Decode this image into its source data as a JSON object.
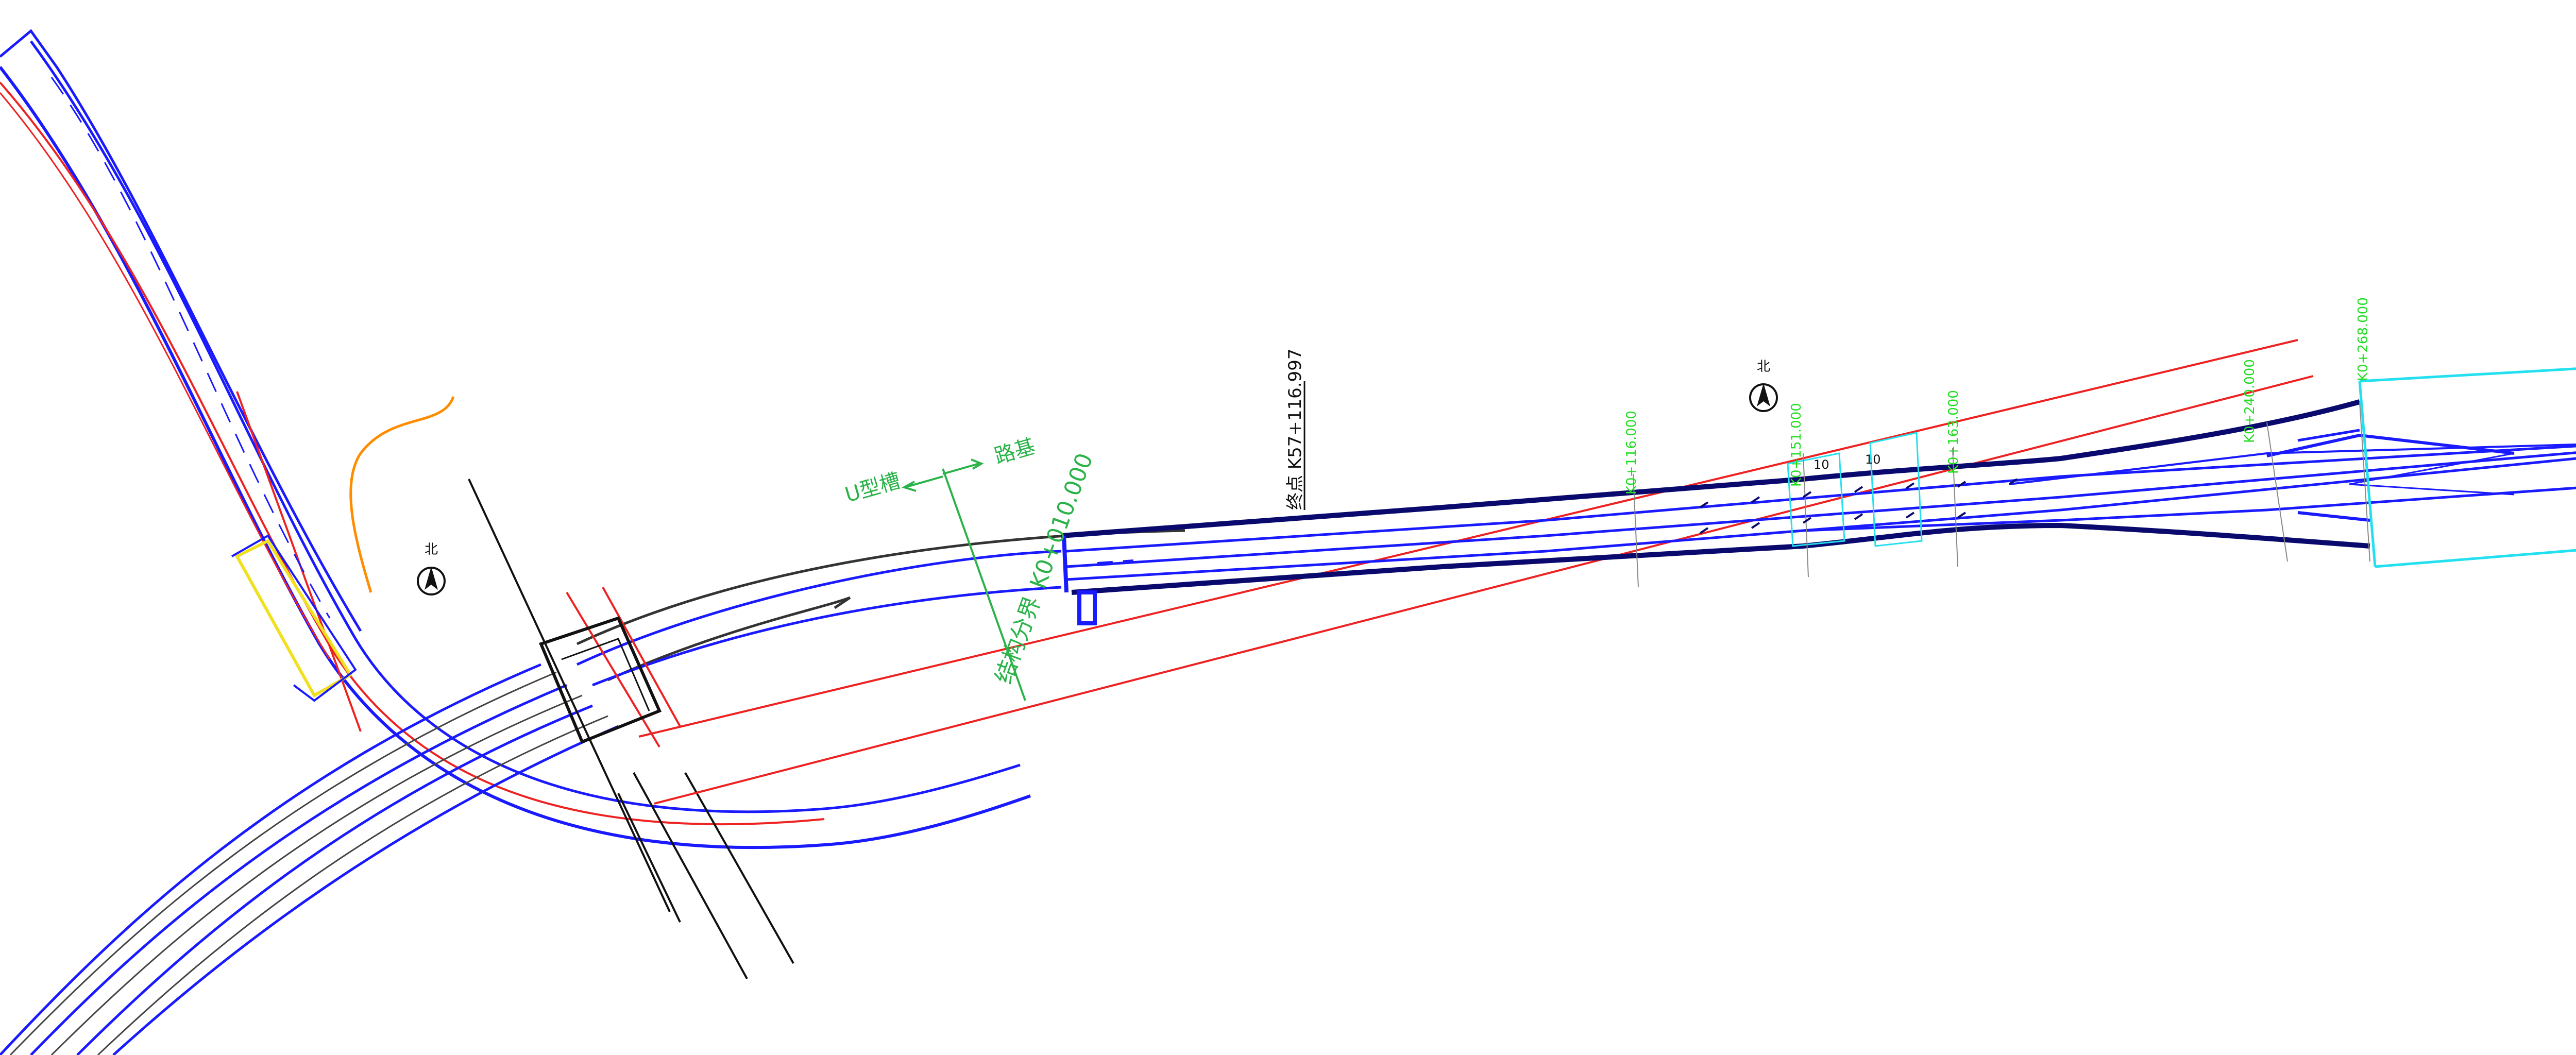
{
  "labels": {
    "north": "北",
    "u_trough": "U型槽",
    "subgrade": "路基",
    "structure_split": "结构分界",
    "structure_split_station": "K0+010.000",
    "endpoint_station": "终点 K57+116.997",
    "k0_116": "K0+116.000",
    "k0_151": "K0+151.000",
    "k0_163": "K0+163.000",
    "k0_240": "K0+240.000",
    "k0_268": "K0+268.000",
    "ten_a": "10",
    "ten_b": "10"
  },
  "colors": {
    "blue": "#1a1aff",
    "dark_navy": "#0a0a6e",
    "red": "#ee2222",
    "green": "#2bb34a",
    "bright_green": "#22dd22",
    "cyan": "#22e0f0",
    "orange": "#ff8c00",
    "yellow": "#f0e020",
    "black": "#111111",
    "gray": "#444444"
  }
}
